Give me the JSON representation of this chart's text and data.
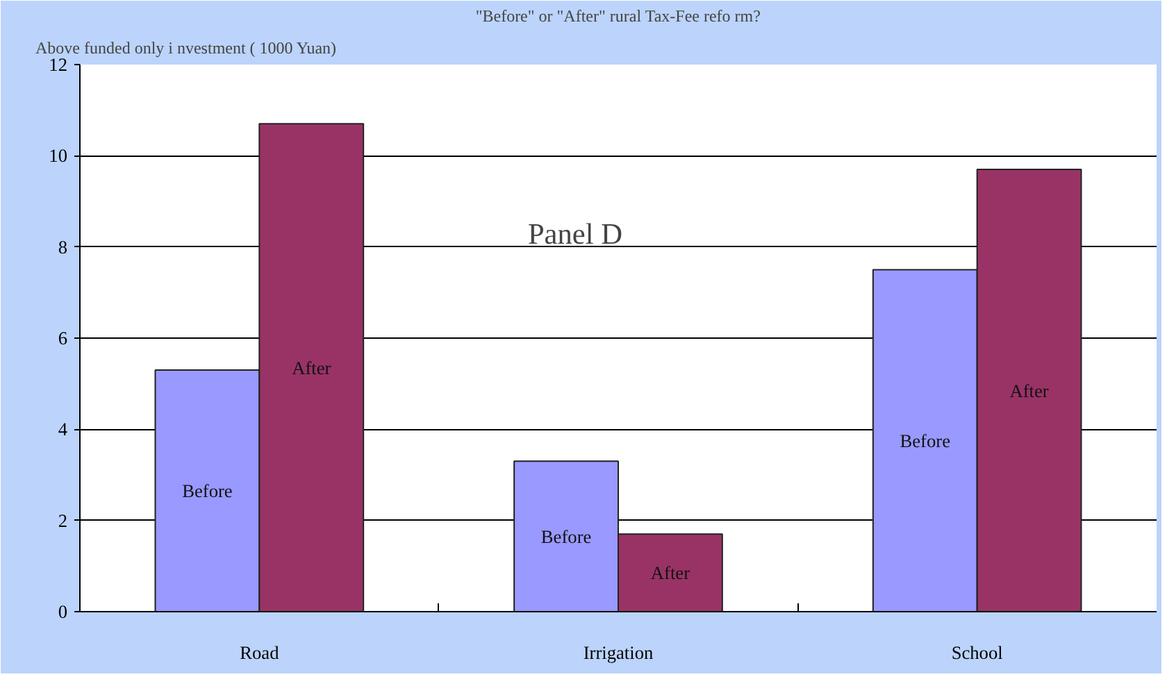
{
  "chart_data": {
    "type": "bar",
    "title": "\"Before\" or \"After\" rural Tax-Fee refo rm?",
    "ylabel": "Above funded only i nvestment ( 1000 Yuan)",
    "categories": [
      "Road",
      "Irrigation",
      "School"
    ],
    "series": [
      {
        "name": "Before",
        "color": "#9999ff",
        "values": [
          5.3,
          3.3,
          7.5
        ]
      },
      {
        "name": "After",
        "color": "#993366",
        "values": [
          10.7,
          1.7,
          9.7
        ]
      }
    ],
    "ylim": [
      0,
      12
    ],
    "yticks": [
      0,
      2,
      4,
      6,
      8,
      10,
      12
    ],
    "grid": "y",
    "annotations": [
      "Panel D"
    ]
  }
}
